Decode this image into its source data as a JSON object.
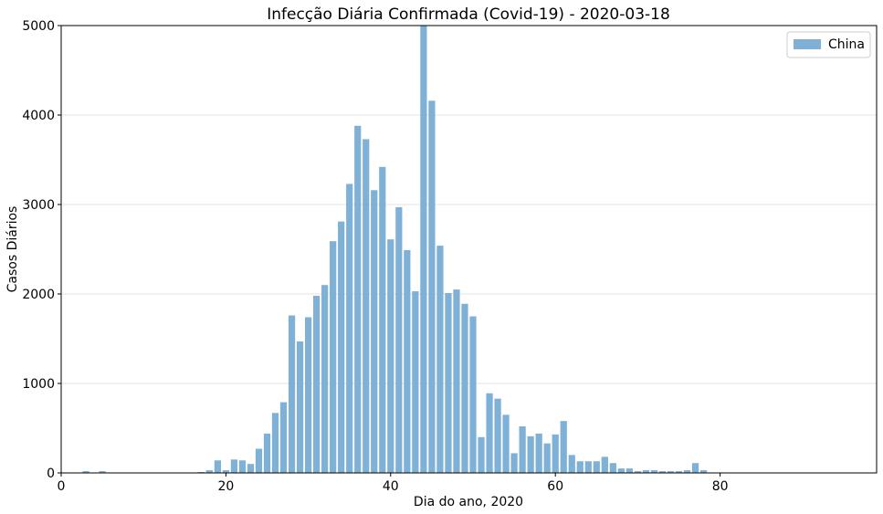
{
  "chart_data": {
    "type": "bar",
    "title": "Infecção Diária Confirmada (Covid-19) - 2020-03-18",
    "xlabel": "Dia do ano, 2020",
    "ylabel": "Casos Diários",
    "xlim": [
      0,
      99
    ],
    "ylim": [
      0,
      5000
    ],
    "xticks": [
      0,
      20,
      40,
      60,
      80
    ],
    "yticks": [
      0,
      1000,
      2000,
      3000,
      4000,
      5000
    ],
    "grid": "horizontal",
    "legend": "top-right",
    "bar_color": "#7fb0d6",
    "series": [
      {
        "name": "China",
        "x": [
          3,
          5,
          17,
          18,
          19,
          20,
          21,
          22,
          23,
          24,
          25,
          26,
          27,
          28,
          29,
          30,
          31,
          32,
          33,
          34,
          35,
          36,
          37,
          38,
          39,
          40,
          41,
          42,
          43,
          44,
          45,
          46,
          47,
          48,
          49,
          50,
          51,
          52,
          53,
          54,
          55,
          56,
          57,
          58,
          59,
          60,
          61,
          62,
          63,
          64,
          65,
          66,
          67,
          68,
          69,
          70,
          71,
          72,
          73,
          74,
          75,
          76,
          77,
          78
        ],
        "values": [
          20,
          20,
          10,
          30,
          140,
          30,
          150,
          140,
          100,
          270,
          440,
          670,
          790,
          1760,
          1470,
          1740,
          1980,
          2100,
          2590,
          2810,
          3230,
          3880,
          3730,
          3160,
          3420,
          2610,
          2970,
          2490,
          2030,
          5090,
          4160,
          2540,
          2010,
          2050,
          1890,
          1750,
          400,
          890,
          830,
          650,
          220,
          520,
          410,
          440,
          330,
          430,
          580,
          200,
          130,
          130,
          130,
          180,
          110,
          50,
          50,
          20,
          30,
          30,
          20,
          20,
          20,
          30,
          110,
          30
        ]
      }
    ]
  }
}
